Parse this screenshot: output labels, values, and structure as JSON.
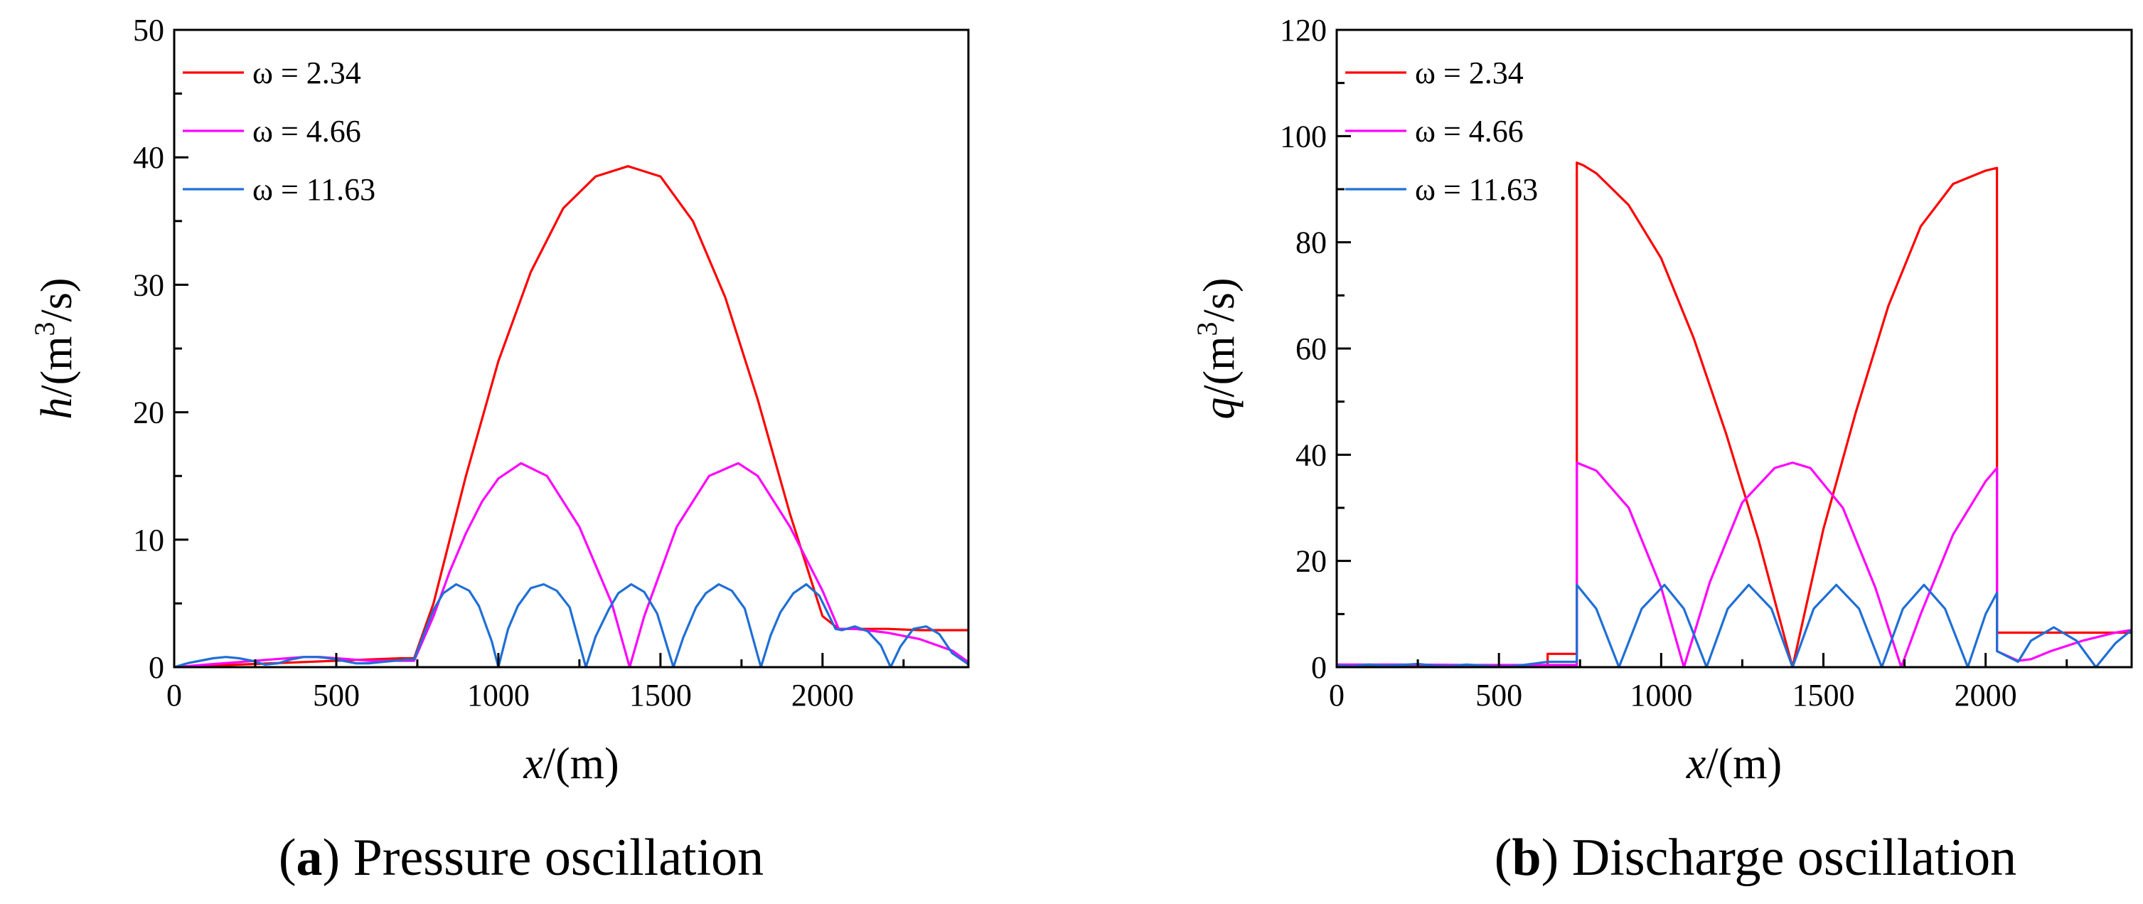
{
  "chart_data": [
    {
      "type": "line",
      "caption": {
        "letter": "a",
        "text": ") Pressure oscillation"
      },
      "xlabel": {
        "var": "x",
        "unit": "/(m)"
      },
      "ylabel": {
        "var": "h",
        "unit_pre": "/(m",
        "sup": "3",
        "unit_post": "/s)"
      },
      "xlim": [
        0,
        2450
      ],
      "ylim": [
        0,
        50
      ],
      "xticks": [
        0,
        500,
        1000,
        1500,
        2000
      ],
      "yticks": [
        0,
        10,
        20,
        30,
        40,
        50
      ],
      "legend": "top-left",
      "series": [
        {
          "name": "ω = 2.34",
          "color": "#ff0000",
          "x": [
            0,
            100,
            200,
            300,
            400,
            500,
            600,
            700,
            740,
            800,
            900,
            1000,
            1100,
            1200,
            1300,
            1400,
            1500,
            1600,
            1700,
            1800,
            1900,
            2000,
            2050,
            2100,
            2200,
            2300,
            2400,
            2450
          ],
          "y": [
            0,
            0.1,
            0.2,
            0.3,
            0.4,
            0.5,
            0.6,
            0.7,
            0.7,
            5,
            15,
            24,
            31,
            36,
            38.5,
            39.3,
            38.5,
            35,
            29,
            21,
            12,
            4,
            3,
            3,
            3,
            2.9,
            2.9,
            2.9
          ]
        },
        {
          "name": "ω = 4.66",
          "color": "#ff00ff",
          "x": [
            0,
            50,
            100,
            150,
            200,
            250,
            300,
            350,
            400,
            450,
            500,
            550,
            600,
            650,
            700,
            740,
            800,
            850,
            900,
            950,
            1000,
            1070,
            1150,
            1250,
            1350,
            1405,
            1450,
            1550,
            1650,
            1740,
            1800,
            1900,
            2000,
            2050,
            2100,
            2200,
            2300,
            2400,
            2450
          ],
          "y": [
            0,
            0.1,
            0.2,
            0.3,
            0.4,
            0.5,
            0.6,
            0.7,
            0.8,
            0.8,
            0.7,
            0.6,
            0.5,
            0.5,
            0.5,
            0.5,
            4,
            7.5,
            10.5,
            13,
            14.8,
            16,
            15,
            11,
            5,
            0,
            4,
            11,
            15,
            16,
            15,
            11,
            6,
            3,
            3,
            2.7,
            2.2,
            1.3,
            0.4
          ]
        },
        {
          "name": "ω = 11.63",
          "color": "#1f6fd6",
          "x": [
            0,
            40,
            80,
            120,
            160,
            200,
            240,
            280,
            320,
            360,
            400,
            440,
            480,
            520,
            560,
            600,
            640,
            680,
            720,
            740,
            770,
            800,
            830,
            870,
            910,
            940,
            980,
            1000,
            1030,
            1060,
            1100,
            1140,
            1180,
            1220,
            1270,
            1300,
            1340,
            1370,
            1410,
            1450,
            1490,
            1540,
            1570,
            1610,
            1640,
            1680,
            1720,
            1760,
            1810,
            1840,
            1870,
            1910,
            1950,
            1990,
            2040,
            2060,
            2100,
            2140,
            2180,
            2210,
            2240,
            2280,
            2320,
            2360,
            2400,
            2440,
            2450
          ],
          "y": [
            0,
            0.3,
            0.5,
            0.7,
            0.8,
            0.7,
            0.5,
            0.2,
            0.3,
            0.6,
            0.8,
            0.8,
            0.7,
            0.5,
            0.3,
            0.3,
            0.4,
            0.5,
            0.6,
            0.6,
            2.6,
            4.5,
            5.8,
            6.5,
            6,
            4.8,
            2,
            0,
            3,
            4.8,
            6.2,
            6.5,
            6,
            4.7,
            0,
            2.4,
            4.5,
            5.8,
            6.5,
            5.9,
            4.2,
            0,
            2.3,
            4.7,
            5.8,
            6.5,
            6,
            4.6,
            0,
            2.5,
            4.3,
            5.8,
            6.5,
            5.6,
            3,
            2.9,
            3.2,
            2.8,
            1.7,
            0,
            1.6,
            3,
            3.2,
            2.6,
            1.1,
            0.4,
            0.2
          ]
        }
      ]
    },
    {
      "type": "line",
      "caption": {
        "letter": "b",
        "text": ") Discharge oscillation"
      },
      "xlabel": {
        "var": "x",
        "unit": "/(m)"
      },
      "ylabel": {
        "var": "q",
        "unit_pre": "/(m",
        "sup": "3",
        "unit_post": "/s)"
      },
      "xlim": [
        0,
        2450
      ],
      "ylim": [
        0,
        120
      ],
      "xticks": [
        0,
        500,
        1000,
        1500,
        2000
      ],
      "yticks": [
        0,
        20,
        40,
        60,
        80,
        100,
        120
      ],
      "legend": "top-left",
      "series": [
        {
          "name": "ω = 2.34",
          "color": "#ff0000",
          "x": [
            0,
            200,
            400,
            600,
            650,
            650.1,
            740,
            740.1,
            760,
            800,
            900,
            1000,
            1100,
            1200,
            1300,
            1405,
            1500,
            1600,
            1700,
            1800,
            1900,
            2000,
            2035,
            2035.1,
            2450
          ],
          "y": [
            0.3,
            0.3,
            0.3,
            0.3,
            0.3,
            2.5,
            2.5,
            95,
            94.5,
            93,
            87,
            77,
            62,
            44,
            24,
            0,
            26,
            48,
            68,
            83,
            91,
            93.5,
            94,
            6.5,
            6.5
          ]
        },
        {
          "name": "ω = 4.66",
          "color": "#ff00ff",
          "x": [
            0,
            200,
            400,
            600,
            650,
            740,
            740.1,
            800,
            900,
            1000,
            1070,
            1150,
            1250,
            1350,
            1405,
            1460,
            1560,
            1660,
            1740,
            1800,
            1900,
            2000,
            2035,
            2035.1,
            2100,
            2140,
            2200,
            2300,
            2400,
            2450
          ],
          "y": [
            0.5,
            0.5,
            0.4,
            0.4,
            0.4,
            0.4,
            38.5,
            37,
            30,
            15,
            0,
            16,
            31,
            37.5,
            38.5,
            37.5,
            30,
            15,
            0,
            10,
            25,
            35,
            37.5,
            3,
            1.2,
            1.5,
            3,
            5,
            6.5,
            7
          ]
        },
        {
          "name": "ω = 11.63",
          "color": "#1f6fd6",
          "x": [
            0,
            50,
            100,
            150,
            200,
            250,
            300,
            350,
            400,
            450,
            500,
            550,
            600,
            650,
            700,
            740,
            740.1,
            800,
            870,
            940,
            1010,
            1070,
            1140,
            1205,
            1270,
            1340,
            1405,
            1470,
            1540,
            1610,
            1680,
            1745,
            1810,
            1875,
            1945,
            2000,
            2035,
            2035.1,
            2100,
            2140,
            2210,
            2280,
            2340,
            2400,
            2450
          ],
          "y": [
            0.3,
            0.2,
            0.5,
            0.3,
            0.4,
            0.6,
            0.3,
            0.2,
            0.5,
            0.3,
            0.1,
            0.2,
            0.6,
            1,
            1,
            1,
            15.5,
            11,
            0,
            11,
            15.5,
            11,
            0,
            11,
            15.5,
            11,
            0,
            11,
            15.5,
            11,
            0,
            11,
            15.5,
            11,
            0,
            10,
            14,
            3,
            1,
            5,
            7.5,
            5,
            0,
            4.5,
            7
          ]
        }
      ]
    }
  ]
}
